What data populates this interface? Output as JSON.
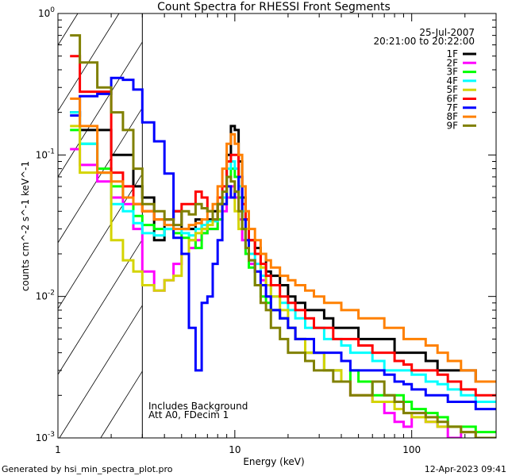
{
  "chart_data": {
    "type": "line",
    "title": "Count Spectra for RHESSI Front Segments",
    "xlabel": "Energy (keV)",
    "ylabel": "counts cm^-2 s^-1 keV^-1",
    "xscale": "log",
    "yscale": "log",
    "xlim": [
      1,
      300
    ],
    "ylim": [
      0.001,
      1
    ],
    "x_ticks": [
      {
        "value": 1,
        "label": "1"
      },
      {
        "value": 10,
        "label": "10"
      },
      {
        "value": 100,
        "label": "100"
      }
    ],
    "y_ticks": [
      {
        "value": 1,
        "base": "10",
        "exp": "0"
      },
      {
        "value": 0.1,
        "base": "10",
        "exp": "-1"
      },
      {
        "value": 0.01,
        "base": "10",
        "exp": "-2"
      },
      {
        "value": 0.001,
        "base": "10",
        "exp": "-3"
      }
    ],
    "shaded_region": {
      "x": [
        1,
        3
      ],
      "style": "hatched"
    },
    "legend_placement": "top-right",
    "date": "25-Jul-2007",
    "time_range": "20:21:00 to 20:22:00",
    "annotations": [
      "Includes Background",
      "Att A0, FDecim 1"
    ],
    "bin_edges": [
      1.17,
      1.33,
      1.67,
      2,
      2.33,
      2.67,
      3,
      3.5,
      4,
      4.5,
      5,
      5.5,
      6,
      6.5,
      7,
      7.5,
      8,
      8.5,
      9,
      9.5,
      10,
      10.5,
      11,
      11.5,
      12,
      13,
      14,
      15,
      16,
      18,
      20,
      22,
      25,
      28,
      32,
      36,
      40,
      45,
      50,
      60,
      70,
      80,
      90,
      100,
      120,
      140,
      160,
      190,
      230,
      300
    ],
    "series": [
      {
        "name": "1F",
        "color": "#000000",
        "values": [
          0.2,
          0.15,
          0.15,
          0.1,
          0.1,
          0.06,
          0.05,
          0.025,
          0.035,
          0.04,
          0.03,
          0.03,
          0.035,
          0.03,
          0.035,
          0.04,
          0.045,
          0.05,
          0.1,
          0.16,
          0.15,
          0.09,
          0.05,
          0.035,
          0.025,
          0.022,
          0.02,
          0.015,
          0.014,
          0.012,
          0.01,
          0.009,
          0.008,
          0.008,
          0.007,
          0.006,
          0.006,
          0.006,
          0.005,
          0.005,
          0.005,
          0.004,
          0.004,
          0.004,
          0.0035,
          0.003,
          0.003,
          0.003,
          0.0025
        ]
      },
      {
        "name": "2F",
        "color": "#ff00ff",
        "values": [
          0.11,
          0.085,
          0.065,
          0.05,
          0.045,
          0.03,
          0.015,
          0.011,
          0.013,
          0.017,
          0.02,
          0.022,
          0.025,
          0.028,
          0.03,
          0.03,
          0.035,
          0.04,
          0.05,
          0.06,
          0.05,
          0.035,
          0.025,
          0.02,
          0.017,
          0.015,
          0.013,
          0.01,
          0.008,
          0.007,
          0.006,
          0.005,
          0.004,
          0.004,
          0.003,
          0.003,
          0.0025,
          0.002,
          0.002,
          0.0018,
          0.0015,
          0.0013,
          0.0012,
          0.0015,
          0.0013,
          0.0012,
          0.001,
          0.0011,
          0.001
        ]
      },
      {
        "name": "3F",
        "color": "#00ff00",
        "values": [
          0.15,
          0.12,
          0.08,
          0.06,
          0.05,
          0.037,
          0.032,
          0.03,
          0.03,
          0.028,
          0.026,
          0.025,
          0.022,
          0.028,
          0.03,
          0.03,
          0.035,
          0.045,
          0.07,
          0.08,
          0.07,
          0.05,
          0.03,
          0.02,
          0.016,
          0.012,
          0.01,
          0.009,
          0.008,
          0.007,
          0.006,
          0.005,
          0.004,
          0.004,
          0.003,
          0.003,
          0.0025,
          0.003,
          0.0025,
          0.002,
          0.002,
          0.002,
          0.0018,
          0.0016,
          0.0015,
          0.0014,
          0.0012,
          0.0012,
          0.0011
        ]
      },
      {
        "name": "4F",
        "color": "#00ffff",
        "values": [
          0.2,
          0.12,
          0.075,
          0.045,
          0.04,
          0.033,
          0.028,
          0.027,
          0.03,
          0.03,
          0.028,
          0.027,
          0.03,
          0.032,
          0.034,
          0.034,
          0.04,
          0.05,
          0.08,
          0.09,
          0.08,
          0.06,
          0.04,
          0.03,
          0.02,
          0.017,
          0.014,
          0.012,
          0.01,
          0.009,
          0.008,
          0.007,
          0.006,
          0.006,
          0.005,
          0.005,
          0.0045,
          0.004,
          0.004,
          0.0035,
          0.003,
          0.003,
          0.003,
          0.0028,
          0.0025,
          0.0024,
          0.0022,
          0.002,
          0.0018
        ]
      },
      {
        "name": "5F",
        "color": "#d4d400",
        "values": [
          0.16,
          0.075,
          0.075,
          0.025,
          0.018,
          0.015,
          0.012,
          0.011,
          0.013,
          0.014,
          0.02,
          0.025,
          0.028,
          0.03,
          0.032,
          0.035,
          0.04,
          0.045,
          0.06,
          0.05,
          0.04,
          0.03,
          0.035,
          0.03,
          0.025,
          0.02,
          0.016,
          0.012,
          0.01,
          0.008,
          0.006,
          0.005,
          0.004,
          0.004,
          0.003,
          0.003,
          0.0025,
          0.002,
          0.002,
          0.0018,
          0.0018,
          0.0016,
          0.0015,
          0.0014,
          0.0013,
          0.0012,
          0.0012,
          0.0011,
          0.001
        ]
      },
      {
        "name": "6F",
        "color": "#ff0000",
        "values": [
          0.5,
          0.28,
          0.28,
          0.075,
          0.06,
          0.045,
          0.04,
          0.035,
          0.035,
          0.04,
          0.045,
          0.045,
          0.055,
          0.05,
          0.04,
          0.035,
          0.05,
          0.06,
          0.09,
          0.1,
          0.1,
          0.07,
          0.045,
          0.035,
          0.025,
          0.02,
          0.017,
          0.014,
          0.012,
          0.01,
          0.009,
          0.008,
          0.007,
          0.006,
          0.006,
          0.005,
          0.005,
          0.005,
          0.0045,
          0.004,
          0.004,
          0.0035,
          0.0033,
          0.003,
          0.003,
          0.0028,
          0.0025,
          0.0022,
          0.002
        ]
      },
      {
        "name": "7F",
        "color": "#0000ff",
        "values": [
          0.19,
          0.26,
          0.27,
          0.35,
          0.34,
          0.29,
          0.17,
          0.125,
          0.074,
          0.026,
          0.02,
          0.006,
          0.003,
          0.009,
          0.01,
          0.017,
          0.025,
          0.045,
          0.06,
          0.05,
          0.055,
          0.07,
          0.035,
          0.025,
          0.018,
          0.015,
          0.012,
          0.01,
          0.008,
          0.007,
          0.006,
          0.005,
          0.005,
          0.004,
          0.004,
          0.004,
          0.0035,
          0.003,
          0.003,
          0.003,
          0.0028,
          0.0025,
          0.0024,
          0.0022,
          0.002,
          0.002,
          0.0018,
          0.0018,
          0.0016
        ]
      },
      {
        "name": "8F",
        "color": "#ff8000",
        "values": [
          0.25,
          0.16,
          0.075,
          0.065,
          0.05,
          0.045,
          0.04,
          0.035,
          0.032,
          0.03,
          0.03,
          0.032,
          0.033,
          0.035,
          0.04,
          0.045,
          0.06,
          0.08,
          0.12,
          0.14,
          0.12,
          0.1,
          0.06,
          0.04,
          0.03,
          0.025,
          0.02,
          0.018,
          0.016,
          0.014,
          0.013,
          0.012,
          0.011,
          0.01,
          0.009,
          0.009,
          0.008,
          0.008,
          0.007,
          0.007,
          0.006,
          0.006,
          0.005,
          0.005,
          0.0045,
          0.004,
          0.0035,
          0.003,
          0.0025
        ]
      },
      {
        "name": "9F",
        "color": "#808000",
        "values": [
          0.7,
          0.45,
          0.3,
          0.2,
          0.15,
          0.08,
          0.045,
          0.04,
          0.035,
          0.032,
          0.04,
          0.038,
          0.045,
          0.042,
          0.04,
          0.035,
          0.045,
          0.055,
          0.07,
          0.065,
          0.055,
          0.04,
          0.03,
          0.022,
          0.018,
          0.012,
          0.009,
          0.008,
          0.006,
          0.005,
          0.004,
          0.004,
          0.0035,
          0.003,
          0.003,
          0.0025,
          0.0025,
          0.002,
          0.002,
          0.0025,
          0.002,
          0.0018,
          0.0015,
          0.0015,
          0.0014,
          0.0013,
          0.0012,
          0.0011,
          0.001
        ]
      }
    ]
  },
  "footer": {
    "generated_by": "Generated by hsi_min_spectra_plot.pro",
    "timestamp": "12-Apr-2023 09:41"
  }
}
